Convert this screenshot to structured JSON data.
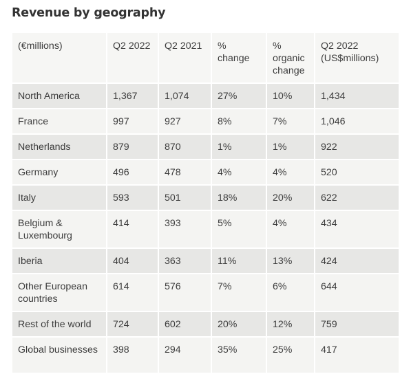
{
  "title": "Revenue by geography",
  "table": {
    "headers": [
      "(€millions)",
      "Q2 2022",
      "Q2 2021",
      "% change",
      "% organic change",
      "Q2 2022 (US$millions)"
    ],
    "rows": [
      [
        "North America",
        "1,367",
        "1,074",
        "27%",
        "10%",
        "1,434"
      ],
      [
        "France",
        "997",
        "927",
        "8%",
        "7%",
        "1,046"
      ],
      [
        "Netherlands",
        "879",
        "870",
        "1%",
        "1%",
        "922"
      ],
      [
        "Germany",
        "496",
        "478",
        "4%",
        "4%",
        "520"
      ],
      [
        "Italy",
        "593",
        "501",
        "18%",
        "20%",
        "622"
      ],
      [
        "Belgium & Luxembourg",
        "414",
        "393",
        "5%",
        "4%",
        "434"
      ],
      [
        "Iberia",
        "404",
        "363",
        "11%",
        "13%",
        "424"
      ],
      [
        "Other European countries",
        "614",
        "576",
        "7%",
        "6%",
        "644"
      ],
      [
        "Rest of the world",
        "724",
        "602",
        "20%",
        "12%",
        "759"
      ],
      [
        "Global businesses",
        "398",
        "294",
        "35%",
        "25%",
        "417"
      ]
    ]
  }
}
